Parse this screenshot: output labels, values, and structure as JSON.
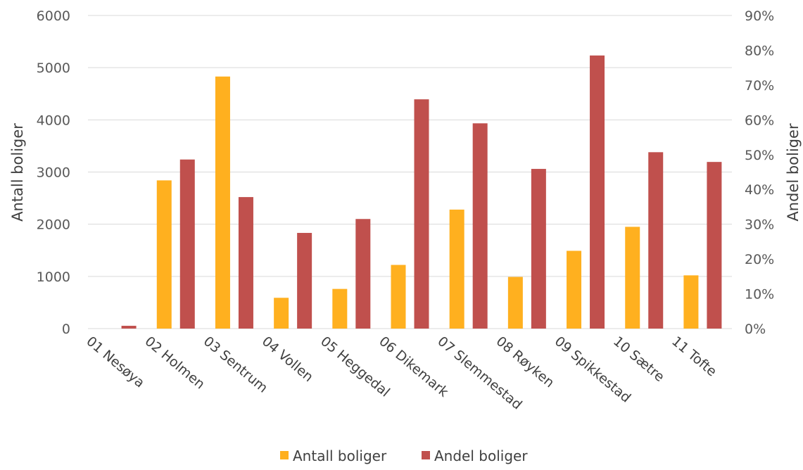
{
  "chart_data": {
    "type": "bar",
    "categories": [
      "01 Nesøya",
      "02 Holmen",
      "03 Sentrum",
      "04 Vollen",
      "05 Heggedal",
      "06 Dikemark",
      "07 Slemmestad",
      "08 Røyken",
      "09 Spikkestad",
      "10 Sætre",
      "11 Tofte"
    ],
    "series": [
      {
        "name": "Antall boliger",
        "axis": "left",
        "color": "#FFB01F",
        "values": [
          0,
          2840,
          4830,
          590,
          760,
          1220,
          2280,
          990,
          1490,
          1950,
          1020
        ]
      },
      {
        "name": "Andel boliger",
        "axis": "right",
        "color": "#C0504D",
        "values": [
          0.008,
          0.486,
          0.378,
          0.275,
          0.315,
          0.659,
          0.59,
          0.459,
          0.785,
          0.507,
          0.479
        ]
      }
    ],
    "ylabel": "Antall boliger",
    "y2label": "Andel boliger",
    "ylim": [
      0,
      6000
    ],
    "y2lim": [
      0,
      0.9
    ],
    "yticks": [
      "0",
      "1000",
      "2000",
      "3000",
      "4000",
      "5000",
      "6000"
    ],
    "y2ticks": [
      "0%",
      "10%",
      "20%",
      "30%",
      "40%",
      "50%",
      "60%",
      "70%",
      "80%",
      "90%"
    ],
    "grid": true,
    "legend": "bottom"
  }
}
